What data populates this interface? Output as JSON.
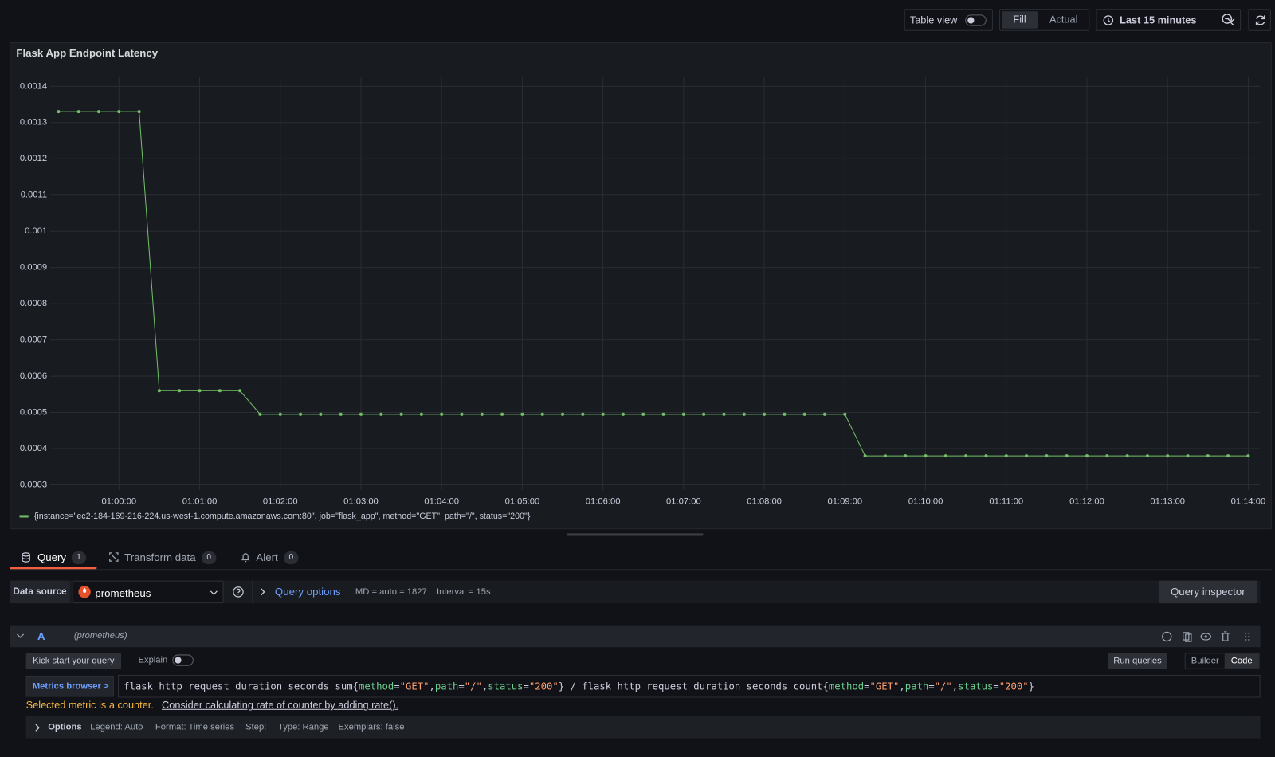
{
  "toolbar": {
    "table_view": "Table view",
    "fill": "Fill",
    "actual": "Actual",
    "time_range": "Last 15 minutes"
  },
  "chart_data": {
    "type": "line",
    "title": "Flask App Endpoint Latency",
    "x": [
      "00:59:15",
      "00:59:30",
      "00:59:45",
      "01:00:00",
      "01:00:15",
      "01:00:30",
      "01:00:45",
      "01:01:00",
      "01:01:15",
      "01:01:30",
      "01:01:45",
      "01:02:00",
      "01:02:15",
      "01:02:30",
      "01:02:45",
      "01:03:00",
      "01:03:15",
      "01:03:30",
      "01:03:45",
      "01:04:00",
      "01:04:15",
      "01:04:30",
      "01:04:45",
      "01:05:00",
      "01:05:15",
      "01:05:30",
      "01:05:45",
      "01:06:00",
      "01:06:15",
      "01:06:30",
      "01:06:45",
      "01:07:00",
      "01:07:15",
      "01:07:30",
      "01:07:45",
      "01:08:00",
      "01:08:15",
      "01:08:30",
      "01:08:45",
      "01:09:00",
      "01:09:15",
      "01:09:30",
      "01:09:45",
      "01:10:00",
      "01:10:15",
      "01:10:30",
      "01:10:45",
      "01:11:00",
      "01:11:15",
      "01:11:30",
      "01:11:45",
      "01:12:00",
      "01:12:15",
      "01:12:30",
      "01:12:45",
      "01:13:00",
      "01:13:15",
      "01:13:30",
      "01:13:45",
      "01:14:00"
    ],
    "series": [
      {
        "name": "{instance=\"ec2-184-169-216-224.us-west-1.compute.amazonaws.com:80\", job=\"flask_app\", method=\"GET\", path=\"/\", status=\"200\"}",
        "color": "#73bf69",
        "values": [
          0.00133,
          0.00133,
          0.00133,
          0.00133,
          0.00133,
          0.00056,
          0.00056,
          0.00056,
          0.00056,
          0.00056,
          0.000495,
          0.000495,
          0.000495,
          0.000495,
          0.000495,
          0.000495,
          0.000495,
          0.000495,
          0.000495,
          0.000495,
          0.000495,
          0.000495,
          0.000495,
          0.000495,
          0.000495,
          0.000495,
          0.000495,
          0.000495,
          0.000495,
          0.000495,
          0.000495,
          0.000495,
          0.000495,
          0.000495,
          0.000495,
          0.000495,
          0.000495,
          0.000495,
          0.000495,
          0.000495,
          0.00038,
          0.00038,
          0.00038,
          0.00038,
          0.00038,
          0.00038,
          0.00038,
          0.00038,
          0.00038,
          0.00038,
          0.00038,
          0.00038,
          0.00038,
          0.00038,
          0.00038,
          0.00038,
          0.00038,
          0.00038,
          0.00038,
          0.00038
        ]
      }
    ],
    "xlim": [
      "00:59:09",
      "01:14:09"
    ],
    "xticks": [
      "01:00:00",
      "01:01:00",
      "01:02:00",
      "01:03:00",
      "01:04:00",
      "01:05:00",
      "01:06:00",
      "01:07:00",
      "01:08:00",
      "01:09:00",
      "01:10:00",
      "01:11:00",
      "01:12:00",
      "01:13:00",
      "01:14:00"
    ],
    "ylim": [
      0.000285,
      0.001425
    ],
    "yticks": [
      0.0003,
      0.0004,
      0.0005,
      0.0006,
      0.0007,
      0.0008,
      0.0009,
      0.001,
      0.0011,
      0.0012,
      0.0013,
      0.0014
    ],
    "grid": true
  },
  "tabs": [
    {
      "label": "Query",
      "count": "1"
    },
    {
      "label": "Transform data",
      "count": "0"
    },
    {
      "label": "Alert",
      "count": "0"
    }
  ],
  "datasource": {
    "label": "Data source",
    "name": "prometheus",
    "query_options": "Query options",
    "max_data_points": "MD = auto = 1827",
    "interval": "Interval = 15s",
    "inspector": "Query inspector"
  },
  "query": {
    "ref": "A",
    "datasource": "(prometheus)",
    "kick_start": "Kick start your query",
    "explain": "Explain",
    "run": "Run queries",
    "builder": "Builder",
    "code": "Code",
    "metrics_browser": "Metrics browser >",
    "segments": [
      {
        "text": "flask_http_request_duration_seconds_sum{",
        "color": "#ccccdc"
      },
      {
        "text": "method",
        "color": "#6ccf8e"
      },
      {
        "text": "=",
        "color": "#ccccdc"
      },
      {
        "text": "\"GET\"",
        "color": "#ff9e6e"
      },
      {
        "text": ",",
        "color": "#ccccdc"
      },
      {
        "text": "path",
        "color": "#6ccf8e"
      },
      {
        "text": "=",
        "color": "#ccccdc"
      },
      {
        "text": "\"/\"",
        "color": "#ff9e6e"
      },
      {
        "text": ",",
        "color": "#ccccdc"
      },
      {
        "text": "status",
        "color": "#6ccf8e"
      },
      {
        "text": "=",
        "color": "#ccccdc"
      },
      {
        "text": "\"200\"",
        "color": "#ff9e6e"
      },
      {
        "text": "} / flask_http_request_duration_seconds_count{",
        "color": "#ccccdc"
      },
      {
        "text": "method",
        "color": "#6ccf8e"
      },
      {
        "text": "=",
        "color": "#ccccdc"
      },
      {
        "text": "\"GET\"",
        "color": "#ff9e6e"
      },
      {
        "text": ",",
        "color": "#ccccdc"
      },
      {
        "text": "path",
        "color": "#6ccf8e"
      },
      {
        "text": "=",
        "color": "#ccccdc"
      },
      {
        "text": "\"/\"",
        "color": "#ff9e6e"
      },
      {
        "text": ",",
        "color": "#ccccdc"
      },
      {
        "text": "status",
        "color": "#6ccf8e"
      },
      {
        "text": "=",
        "color": "#ccccdc"
      },
      {
        "text": "\"200\"",
        "color": "#ff9e6e"
      },
      {
        "text": "}",
        "color": "#ccccdc"
      }
    ],
    "warning": "Selected metric is a counter.",
    "hint": "Consider calculating rate of counter by adding rate().",
    "options": {
      "label": "Options",
      "legend": "Legend: Auto",
      "format": "Format: Time series",
      "step": "Step:",
      "type": "Type: Range",
      "exemplars": "Exemplars: false"
    }
  }
}
